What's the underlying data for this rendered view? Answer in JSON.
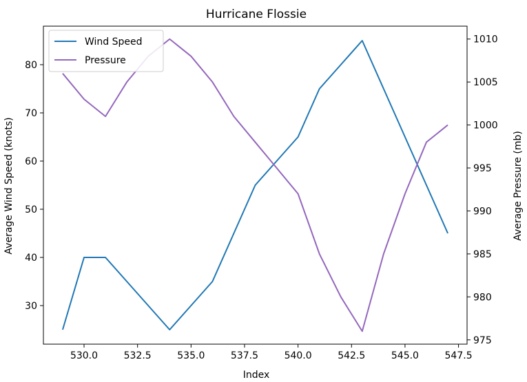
{
  "chart_data": {
    "type": "line",
    "title": "Hurricane Flossie",
    "xlabel": "Index",
    "ylabel": "Average Wind Speed (knots)",
    "y2label": "Average Pressure (mb)",
    "xlim": [
      528.1,
      547.9
    ],
    "ylim": [
      22,
      88
    ],
    "y2lim": [
      974.5,
      1011.5
    ],
    "xticks": [
      530.0,
      532.5,
      535.0,
      537.5,
      540.0,
      542.5,
      545.0,
      547.5
    ],
    "xtick_labels": [
      "530.0",
      "532.5",
      "535.0",
      "537.5",
      "540.0",
      "542.5",
      "545.0",
      "547.5"
    ],
    "yticks": [
      30,
      40,
      50,
      60,
      70,
      80
    ],
    "y2ticks": [
      975,
      980,
      985,
      990,
      995,
      1000,
      1005,
      1010
    ],
    "legend_position": "top-left",
    "grid": false,
    "series": [
      {
        "name": "Wind Speed",
        "axis": "left",
        "color": "#1f77b4",
        "x": [
          529,
          530,
          531,
          532,
          533,
          534,
          535,
          536,
          537,
          538,
          539,
          540,
          541,
          542,
          543,
          544,
          545,
          546,
          547
        ],
        "values": [
          25,
          40,
          40,
          35,
          30,
          25,
          30,
          35,
          45,
          55,
          60,
          65,
          75,
          80,
          85,
          75,
          65,
          55,
          45
        ]
      },
      {
        "name": "Pressure",
        "axis": "right",
        "color": "#9467bd",
        "x": [
          529,
          530,
          531,
          532,
          533,
          534,
          535,
          536,
          537,
          538,
          539,
          540,
          541,
          542,
          543,
          544,
          545,
          546,
          547
        ],
        "values": [
          1006,
          1003,
          1001,
          1005,
          1008,
          1010,
          1008,
          1005,
          1001,
          998,
          995,
          992,
          985,
          980,
          976,
          985,
          992,
          998,
          1000
        ]
      }
    ]
  }
}
